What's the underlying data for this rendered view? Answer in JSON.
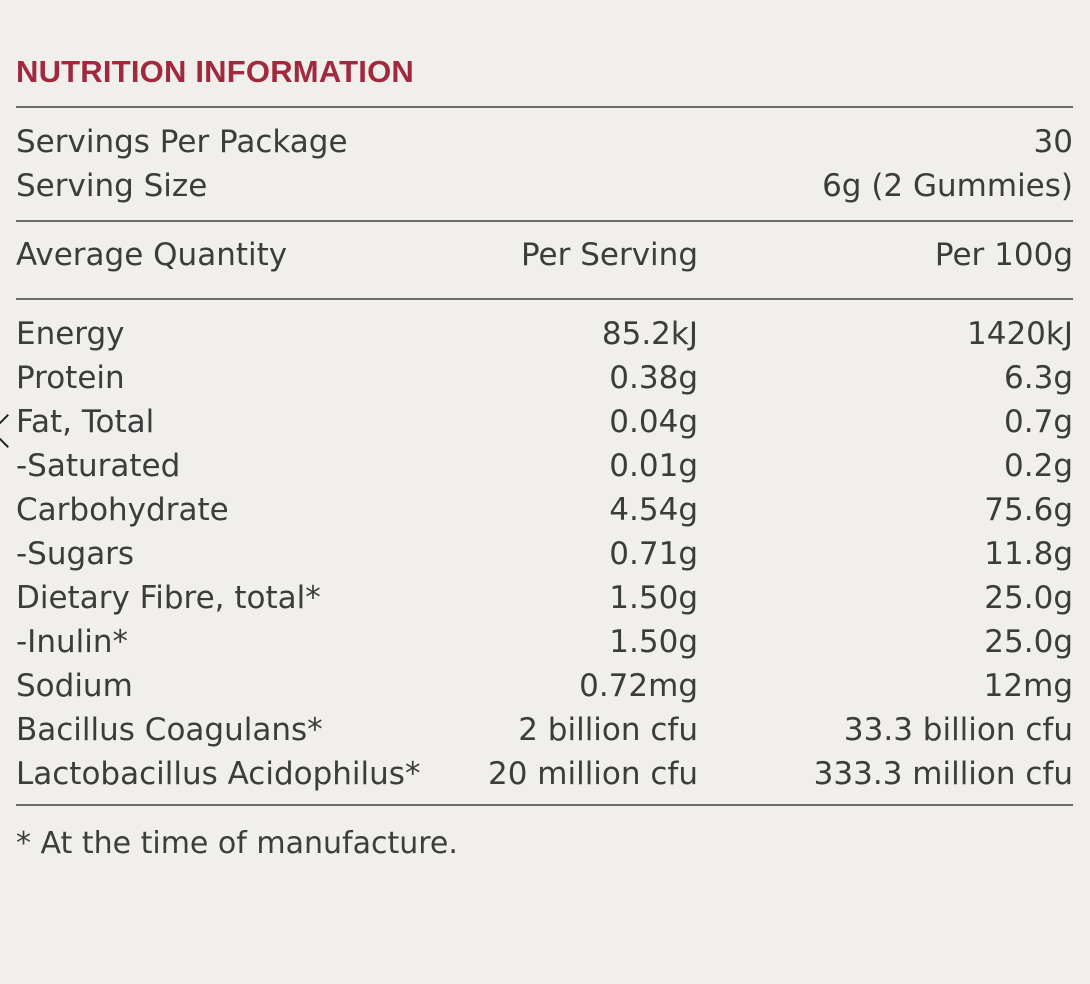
{
  "document": {
    "title": "NUTRITION INFORMATION",
    "serving_rows": [
      {
        "label": "Servings Per Package",
        "value": "30"
      },
      {
        "label": "Serving Size",
        "value": "6g (2 Gummies)"
      }
    ],
    "table_headers": [
      "Average Quantity",
      "Per Serving",
      "Per 100g"
    ],
    "nutrients": [
      {
        "name": "Energy",
        "per_serving": "85.2kJ",
        "per_100g": "1420kJ"
      },
      {
        "name": "Protein",
        "per_serving": "0.38g",
        "per_100g": "6.3g"
      },
      {
        "name": "Fat, Total",
        "per_serving": "0.04g",
        "per_100g": "0.7g"
      },
      {
        "name": "-Saturated",
        "per_serving": "0.01g",
        "per_100g": "0.2g"
      },
      {
        "name": "Carbohydrate",
        "per_serving": "4.54g",
        "per_100g": "75.6g"
      },
      {
        "name": "-Sugars",
        "per_serving": "0.71g",
        "per_100g": "11.8g"
      },
      {
        "name": "Dietary Fibre, total*",
        "per_serving": "1.50g",
        "per_100g": "25.0g"
      },
      {
        "name": "-Inulin*",
        "per_serving": "1.50g",
        "per_100g": "25.0g"
      },
      {
        "name": "Sodium",
        "per_serving": "0.72mg",
        "per_100g": "12mg"
      },
      {
        "name": "Bacillus Coagulans*",
        "per_serving": "2 billion cfu",
        "per_100g": "33.3 billion cfu"
      },
      {
        "name": "Lactobacillus Acidophilus*",
        "per_serving": "20 million cfu",
        "per_100g": "333.3 million cfu"
      }
    ],
    "footnote": "* At the time of manufacture."
  },
  "colors": {
    "background": "#f1efec",
    "title": "#a1293e",
    "text": "#3c3c3c",
    "rule": "#6c6c6c"
  },
  "icons": {
    "left_edge_mark": "chevron-left-icon"
  }
}
